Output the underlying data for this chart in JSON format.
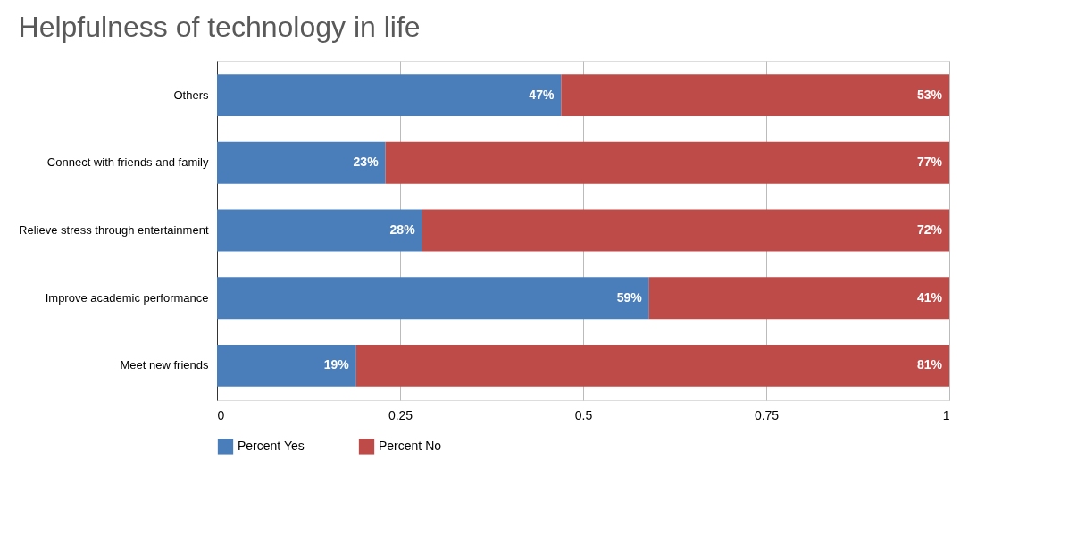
{
  "chart_data": {
    "type": "bar",
    "title": "Helpfulness of technology in life",
    "orientation": "horizontal",
    "stacked": true,
    "categories": [
      "Others",
      "Connect with friends and family",
      "Relieve stress through entertainment",
      "Improve academic performance",
      "Meet new friends"
    ],
    "series": [
      {
        "name": "Percent Yes",
        "color": "#4a7ebb",
        "values": [
          0.47,
          0.23,
          0.28,
          0.59,
          0.19
        ],
        "value_labels": [
          "47%",
          "23%",
          "28%",
          "59%",
          "19%"
        ]
      },
      {
        "name": "Percent No",
        "color": "#be4b48",
        "values": [
          0.53,
          0.77,
          0.72,
          0.41,
          0.81
        ],
        "value_labels": [
          "53%",
          "77%",
          "72%",
          "41%",
          "81%"
        ]
      }
    ],
    "xlim": [
      0,
      1
    ],
    "xticks": [
      0,
      0.25,
      0.5,
      0.75,
      1
    ],
    "grid": "x",
    "legend": "bottom"
  }
}
